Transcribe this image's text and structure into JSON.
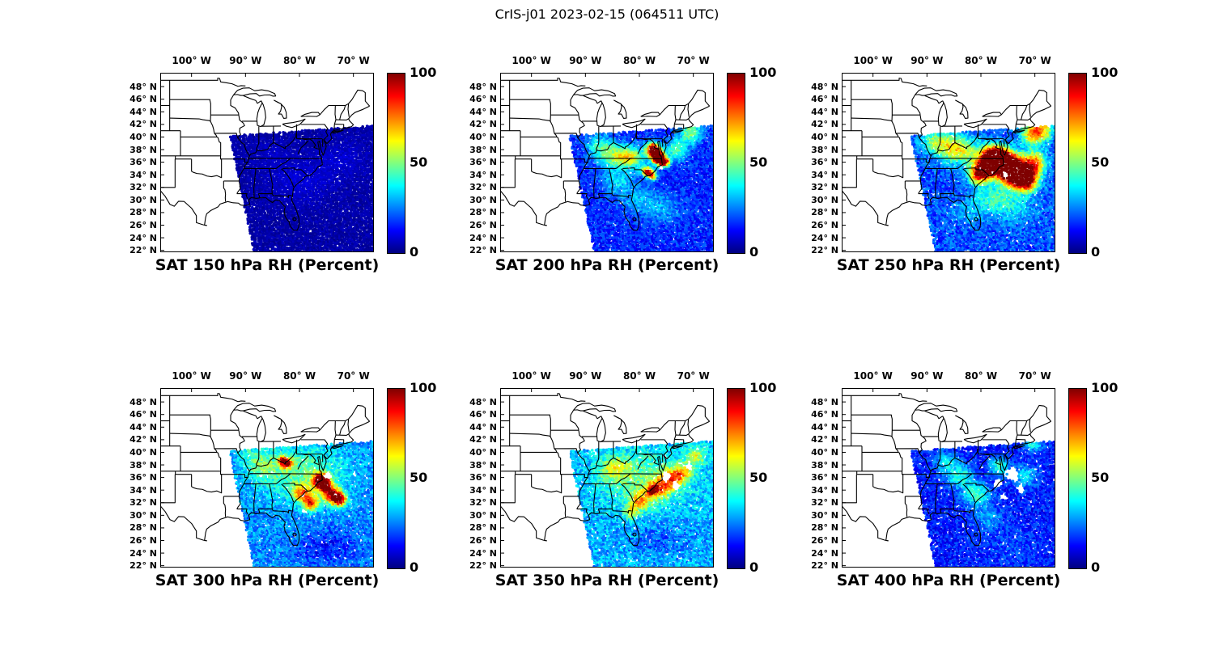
{
  "figure_title": "CrIS-j01 2023-02-15 (064511 UTC)",
  "colors": {
    "background": "#ffffff",
    "map_outline": "#000000",
    "text": "#000000"
  },
  "axes": {
    "lon_ticks": [
      {
        "label": "100° W",
        "lon": -100
      },
      {
        "label": "90° W",
        "lon": -90
      },
      {
        "label": "80° W",
        "lon": -80
      },
      {
        "label": "70° W",
        "lon": -70
      }
    ],
    "lat_ticks": [
      {
        "label": "48° N",
        "lat": 48
      },
      {
        "label": "46° N",
        "lat": 46
      },
      {
        "label": "44° N",
        "lat": 44
      },
      {
        "label": "42° N",
        "lat": 42
      },
      {
        "label": "40° N",
        "lat": 40
      },
      {
        "label": "38° N",
        "lat": 38
      },
      {
        "label": "36° N",
        "lat": 36
      },
      {
        "label": "34° N",
        "lat": 34
      },
      {
        "label": "32° N",
        "lat": 32
      },
      {
        "label": "30° N",
        "lat": 30
      },
      {
        "label": "28° N",
        "lat": 28
      },
      {
        "label": "26° N",
        "lat": 26
      },
      {
        "label": "24° N",
        "lat": 24
      },
      {
        "label": "22° N",
        "lat": 22
      }
    ]
  },
  "colorbar": {
    "min": 0,
    "max": 100,
    "tick_labels": [
      "100",
      "50",
      "0"
    ]
  },
  "chart_data": [
    {
      "type": "heatmap",
      "title": "SAT 150 hPa RH (Percent)",
      "pressure_hPa": 150,
      "variable": "RH",
      "units": "Percent",
      "colormap": "jet",
      "colorbar_range": [
        0,
        100
      ],
      "colorbar_ticks": [
        0,
        50,
        100
      ],
      "lon_range": [
        -100,
        -70
      ],
      "lat_range": [
        22,
        48
      ],
      "summary": "Entire satellite swath uniformly dark blue: RH below ~10% everywhere over the eastern US and western Atlantic.",
      "swath": {
        "base": 4,
        "noise": 2.5,
        "missing": 0.012,
        "features": [
          [
            -80,
            33,
            4,
            2.5,
            9
          ],
          [
            -72,
            36.5,
            3,
            2,
            8
          ],
          [
            -85,
            37.5,
            2.5,
            1.5,
            7
          ]
        ],
        "gaps": []
      }
    },
    {
      "type": "heatmap",
      "title": "SAT 200 hPa RH (Percent)",
      "pressure_hPa": 200,
      "variable": "RH",
      "units": "Percent",
      "colormap": "jet",
      "colorbar_range": [
        0,
        100
      ],
      "colorbar_ticks": [
        0,
        50,
        100
      ],
      "lon_range": [
        -100,
        -70
      ],
      "lat_range": [
        22,
        48
      ],
      "summary": "Mostly dry (10-35%) with cyan-green patches over the Ohio and Tennessee valleys and narrow dark-red streaks (90-100%) along the Virginia-Carolina coast.",
      "swath": {
        "base": 16,
        "noise": 7,
        "missing": 0.02,
        "features": [
          [
            -77.5,
            38.2,
            0.9,
            0.7,
            95
          ],
          [
            -76.8,
            37.2,
            0.9,
            0.7,
            98
          ],
          [
            -76.2,
            36.4,
            0.8,
            0.6,
            92
          ],
          [
            -75.3,
            36.0,
            0.7,
            0.5,
            85
          ],
          [
            -78.6,
            34.6,
            0.7,
            0.5,
            88
          ],
          [
            -77.6,
            33.9,
            0.6,
            0.5,
            80
          ],
          [
            -81.5,
            36.8,
            1.8,
            1.2,
            55
          ],
          [
            -84.8,
            37.0,
            2.2,
            1.3,
            48
          ],
          [
            -87.5,
            38.8,
            1.8,
            1.2,
            38
          ],
          [
            -73.0,
            38.0,
            1.5,
            1.2,
            45
          ],
          [
            -70.5,
            40.8,
            1.5,
            1.2,
            50
          ],
          [
            -80.0,
            30.0,
            2.5,
            1.5,
            30
          ],
          [
            -75.5,
            28.5,
            2.5,
            1.5,
            28
          ],
          [
            -84.0,
            33.0,
            2.0,
            1.4,
            35
          ]
        ],
        "gaps": [
          [
            -76.0,
            35.2,
            0.4
          ]
        ]
      }
    },
    {
      "type": "heatmap",
      "title": "SAT 250 hPa RH (Percent)",
      "pressure_hPa": 250,
      "variable": "RH",
      "units": "Percent",
      "colormap": "jet",
      "colorbar_range": [
        0,
        100
      ],
      "colorbar_ticks": [
        0,
        50,
        100
      ],
      "lon_range": [
        -100,
        -70
      ],
      "lat_range": [
        22,
        48
      ],
      "summary": "Large red-orange moist area (80-100%) over the Mid-Atlantic coast and offshore of the Carolinas, cyan-green over Kentucky/Tennessee, blue south of about 28N.",
      "swath": {
        "base": 20,
        "noise": 8,
        "missing": 0.03,
        "features": [
          [
            -77.5,
            37.0,
            1.5,
            1.2,
            95
          ],
          [
            -76.0,
            36.0,
            1.8,
            1.4,
            98
          ],
          [
            -74.5,
            35.0,
            1.8,
            1.4,
            96
          ],
          [
            -73.0,
            34.0,
            1.8,
            1.4,
            92
          ],
          [
            -71.5,
            33.2,
            1.5,
            1.2,
            86
          ],
          [
            -79.0,
            35.5,
            1.5,
            1.2,
            90
          ],
          [
            -80.3,
            34.0,
            1.3,
            1.0,
            80
          ],
          [
            -70.0,
            36.0,
            1.5,
            1.3,
            75
          ],
          [
            -70.5,
            40.5,
            1.5,
            1.2,
            65
          ],
          [
            -68.5,
            41.3,
            1.5,
            1.2,
            60
          ],
          [
            -83.5,
            37.8,
            2.5,
            1.6,
            55
          ],
          [
            -86.5,
            38.8,
            2.2,
            1.4,
            45
          ],
          [
            -89.0,
            39.5,
            1.8,
            1.2,
            38
          ],
          [
            -78.0,
            30.5,
            2.5,
            1.5,
            40
          ],
          [
            -74.0,
            29.0,
            3.0,
            1.8,
            35
          ],
          [
            -82.5,
            28.0,
            2.0,
            1.3,
            30
          ]
        ],
        "gaps": [
          [
            -75.5,
            34.0,
            0.5
          ]
        ]
      }
    },
    {
      "type": "heatmap",
      "title": "SAT 300 hPa RH (Percent)",
      "pressure_hPa": 300,
      "variable": "RH",
      "units": "Percent",
      "colormap": "jet",
      "colorbar_range": [
        0,
        100
      ],
      "colorbar_ticks": [
        0,
        50,
        100
      ],
      "lon_range": [
        -100,
        -70
      ],
      "lat_range": [
        22,
        48
      ],
      "summary": "Widespread cyan (~40-55%) with compact red cores (90%+) offshore of the Carolinas and a small red spot near West Virginia; dark blue in the far southeast of the swath.",
      "swath": {
        "base": 26,
        "noise": 8,
        "missing": 0.04,
        "features": [
          [
            -80.0,
            37.0,
            6.0,
            3.0,
            48
          ],
          [
            -76.2,
            35.6,
            1.0,
            0.8,
            96
          ],
          [
            -75.3,
            34.8,
            0.9,
            0.7,
            92
          ],
          [
            -73.8,
            33.2,
            1.2,
            0.9,
            90
          ],
          [
            -72.5,
            32.5,
            0.9,
            0.7,
            85
          ],
          [
            -77.8,
            32.0,
            1.0,
            0.8,
            82
          ],
          [
            -82.3,
            38.3,
            0.7,
            0.6,
            85
          ],
          [
            -83.2,
            38.8,
            0.5,
            0.45,
            75
          ],
          [
            -79.5,
            33.5,
            1.2,
            0.9,
            70
          ],
          [
            -87.0,
            38.0,
            2.0,
            1.4,
            42
          ],
          [
            -89.5,
            40.0,
            1.5,
            1.0,
            35
          ],
          [
            -80.0,
            27.5,
            2.5,
            1.5,
            28
          ],
          [
            -75.0,
            25.0,
            4.0,
            2.0,
            14
          ]
        ],
        "gaps": [
          [
            -74.6,
            36.3,
            0.6
          ],
          [
            -79.0,
            30.6,
            0.4
          ]
        ]
      }
    },
    {
      "type": "heatmap",
      "title": "SAT 350 hPa RH (Percent)",
      "pressure_hPa": 350,
      "variable": "RH",
      "units": "Percent",
      "colormap": "jet",
      "colorbar_range": [
        0,
        100
      ],
      "colorbar_ticks": [
        0,
        50,
        100
      ],
      "lon_range": [
        -100,
        -70
      ],
      "lat_range": [
        22,
        48
      ],
      "summary": "Cyan-green field with yellow streaks (60-75%) off the Southeast coast and scattered white gaps where retrievals are missing.",
      "swath": {
        "base": 30,
        "noise": 9,
        "missing": 0.05,
        "features": [
          [
            -79.0,
            36.0,
            6.0,
            3.0,
            48
          ],
          [
            -76.5,
            34.3,
            1.5,
            1.0,
            72
          ],
          [
            -74.0,
            35.8,
            1.3,
            1.0,
            68
          ],
          [
            -72.0,
            36.8,
            1.2,
            0.9,
            62
          ],
          [
            -79.8,
            32.3,
            1.4,
            1.0,
            66
          ],
          [
            -81.5,
            30.5,
            1.0,
            0.8,
            55
          ],
          [
            -69.5,
            39.5,
            1.3,
            1.0,
            58
          ],
          [
            -84.5,
            37.5,
            2.0,
            1.3,
            52
          ],
          [
            -77.6,
            33.9,
            0.5,
            0.4,
            86
          ],
          [
            -76.0,
            26.0,
            4.0,
            2.0,
            22
          ],
          [
            -82.0,
            27.0,
            2.0,
            1.3,
            30
          ]
        ],
        "gaps": [
          [
            -75.0,
            36.2,
            0.9
          ],
          [
            -73.2,
            34.6,
            0.7
          ],
          [
            -70.8,
            37.8,
            0.6
          ]
        ]
      }
    },
    {
      "type": "heatmap",
      "title": "SAT 400 hPa RH (Percent)",
      "pressure_hPa": 400,
      "variable": "RH",
      "units": "Percent",
      "colormap": "jet",
      "colorbar_range": [
        0,
        100
      ],
      "colorbar_ticks": [
        0,
        50,
        100
      ],
      "lon_range": [
        -100,
        -70
      ],
      "lat_range": [
        22,
        48
      ],
      "summary": "Mostly blue (10-30%) with cyan patches (~40%) over the Southeast and white data gaps near the Mid-Atlantic coast.",
      "swath": {
        "base": 15,
        "noise": 7,
        "missing": 0.06,
        "features": [
          [
            -80.8,
            33.3,
            1.8,
            1.3,
            45
          ],
          [
            -83.8,
            36.3,
            1.8,
            1.3,
            40
          ],
          [
            -76.5,
            37.8,
            1.3,
            1.0,
            42
          ],
          [
            -71.8,
            36.2,
            1.6,
            1.2,
            35
          ],
          [
            -86.5,
            38.5,
            1.5,
            1.1,
            35
          ],
          [
            -78.5,
            29.5,
            2.0,
            1.3,
            28
          ],
          [
            -74.0,
            25.0,
            3.0,
            1.8,
            20
          ],
          [
            -70.3,
            41.5,
            1.3,
            1.0,
            38
          ]
        ],
        "gaps": [
          [
            -74.2,
            36.4,
            1.1
          ],
          [
            -76.8,
            35.0,
            0.8
          ],
          [
            -72.6,
            34.3,
            0.7
          ],
          [
            -75.8,
            33.0,
            0.5
          ]
        ]
      }
    }
  ]
}
